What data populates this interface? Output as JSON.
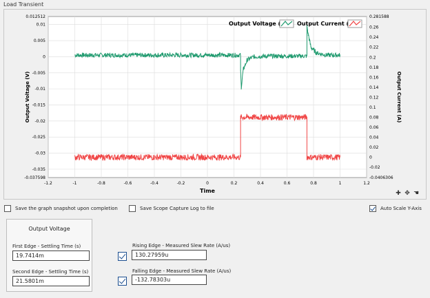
{
  "panel": {
    "title": "Load Transient"
  },
  "chart_data": {
    "type": "line",
    "xlabel": "Time",
    "ylabel_left": "Output Voltage (V)",
    "ylabel_right": "Output Current (A)",
    "xlim": [
      -1.2,
      1.2
    ],
    "ylim_left": [
      -0.037598,
      0.012512
    ],
    "ylim_right": [
      -0.0406306,
      0.281588
    ],
    "x_ticks": [
      "-1.2",
      "-1",
      "-0.8",
      "-0.6",
      "-0.4",
      "-0.2",
      "0",
      "0.2",
      "0.4",
      "0.6",
      "0.8",
      "1",
      "1.2"
    ],
    "left_ticks": [
      "0.012512",
      "0.01",
      "0.005",
      "0",
      "-0.005",
      "-0.01",
      "-0.015",
      "-0.02",
      "-0.025",
      "-0.03",
      "-0.035",
      "-0.037598"
    ],
    "right_ticks": [
      "0.281588",
      "0.26",
      "0.24",
      "0.22",
      "0.2",
      "0.18",
      "0.16",
      "0.14",
      "0.12",
      "0.1",
      "0.08",
      "0.06",
      "0.04",
      "0.02",
      "0",
      "-0.02",
      "-0.0406306"
    ],
    "grid": true,
    "legend": "top-right",
    "series": [
      {
        "name": "Output Voltage (V)",
        "color": "#1e9a6e",
        "axis": "left",
        "points": [
          [
            -1,
            0.0005
          ],
          [
            0.25,
            0.0005
          ],
          [
            0.25,
            -0.0045
          ],
          [
            0.255,
            -0.0095
          ],
          [
            0.27,
            -0.004
          ],
          [
            0.3,
            -0.001
          ],
          [
            0.35,
            0.0
          ],
          [
            0.45,
            0.0002
          ],
          [
            0.75,
            0.0002
          ],
          [
            0.75,
            0.0095
          ],
          [
            0.76,
            0.007
          ],
          [
            0.78,
            0.003
          ],
          [
            0.82,
            0.0012
          ],
          [
            0.9,
            0.0005
          ],
          [
            1,
            0.0005
          ]
        ],
        "noise": 0.0007
      },
      {
        "name": "Output Current (A)",
        "color": "#f04545",
        "axis": "right",
        "points": [
          [
            -1,
            0.0
          ],
          [
            0.25,
            0.0
          ],
          [
            0.25,
            0.08
          ],
          [
            0.75,
            0.08
          ],
          [
            0.75,
            0.0
          ],
          [
            1,
            0.0
          ]
        ],
        "noise": 0.006
      }
    ]
  },
  "legend_items": [
    "Output Voltage (V)",
    "Output Current (A)"
  ],
  "options": {
    "save_snapshot": {
      "label": "Save the graph snapshot upon completion",
      "checked": false
    },
    "save_scope_log": {
      "label": "Save Scope Capture Log to file",
      "checked": false
    },
    "auto_scale": {
      "label": "Auto Scale Y-Axis",
      "checked": true
    }
  },
  "output_voltage": {
    "title": "Output Voltage",
    "first_edge_label": "First Edge - Settling Time (s)",
    "first_edge_value": "19.7414m",
    "second_edge_label": "Second Edge - Settling Time (s)",
    "second_edge_value": "21.5801m"
  },
  "slew": {
    "rising_label": "Rising Edge - Measured Slew Rate (A/us)",
    "rising_value": "130.27959u",
    "rising_checked": true,
    "falling_label": "Falling Edge - Measured Slew Rate (A/us)",
    "falling_value": "-132.78303u",
    "falling_checked": true
  },
  "tools": {
    "zoom_icon": "zoom-icon",
    "pan_icon": "pan-icon",
    "cursor_icon": "cursor-icon"
  }
}
